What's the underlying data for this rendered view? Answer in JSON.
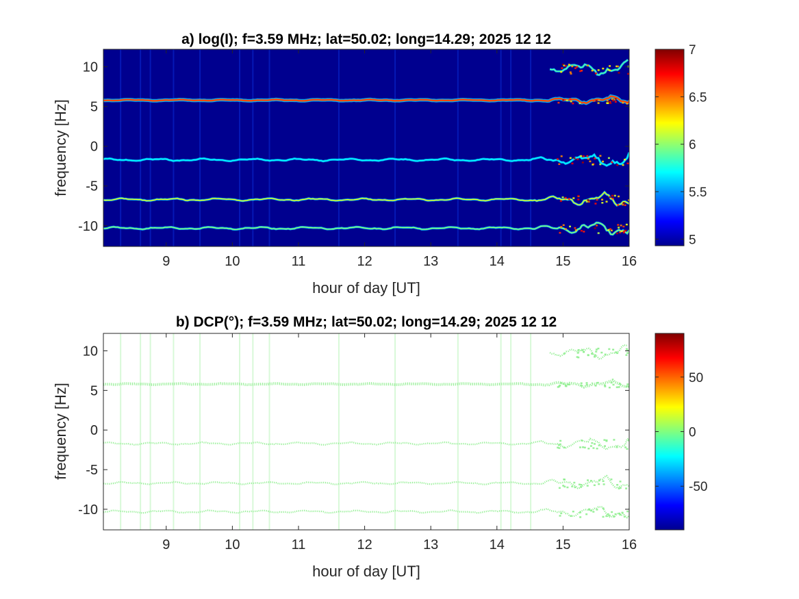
{
  "figure": {
    "background": "#ffffff",
    "plot_background_a": "#00008f",
    "plot_background_b": "#ffffff",
    "trace_color_b": "#90ee90"
  },
  "chart_data": [
    {
      "type": "heatmap",
      "panel": "a",
      "title": "a) log(I); f=3.59 MHz;  lat=50.02; long=14.29; 2025 12 12",
      "xlabel": "hour of day [UT]",
      "ylabel": "frequency [Hz]",
      "xlim": [
        8.05,
        16.0
      ],
      "ylim": [
        -12.6,
        12.2
      ],
      "xticks": [
        9,
        10,
        11,
        12,
        13,
        14,
        15,
        16
      ],
      "xtick_labels": [
        "9",
        "10",
        "11",
        "12",
        "13",
        "14",
        "15",
        "16"
      ],
      "yticks": [
        10,
        5,
        0,
        -5,
        -10
      ],
      "ytick_labels": [
        "10",
        "5",
        "0",
        "-5",
        "-10"
      ],
      "colormap": "jet",
      "clim": [
        4.93,
        7.0
      ],
      "colorbar_ticks": [
        7,
        6.5,
        6,
        5.5,
        5
      ],
      "colorbar_tick_labels": [
        "7",
        "6.5",
        "6",
        "5.5",
        "5"
      ],
      "traces": [
        {
          "x_start": 8.05,
          "x_end": 16.0,
          "y": 5.8,
          "level": 6.6
        },
        {
          "x_start": 8.05,
          "x_end": 16.0,
          "y": -6.7,
          "level": 6.2
        },
        {
          "x_start": 8.05,
          "x_end": 16.0,
          "y": -10.3,
          "level": 6.0
        },
        {
          "x_start": 8.05,
          "x_end": 16.0,
          "y": -1.7,
          "level": 5.7
        },
        {
          "x_start": 14.8,
          "x_end": 16.0,
          "y": 9.8,
          "level": 5.9
        }
      ]
    },
    {
      "type": "heatmap",
      "panel": "b",
      "title": "b) DCP(°); f=3.59 MHz;  lat=50.02; long=14.29; 2025 12 12",
      "xlabel": "hour of day [UT]",
      "ylabel": "frequency [Hz]",
      "xlim": [
        8.05,
        16.0
      ],
      "ylim": [
        -12.6,
        12.2
      ],
      "xticks": [
        9,
        10,
        11,
        12,
        13,
        14,
        15,
        16
      ],
      "xtick_labels": [
        "9",
        "10",
        "11",
        "12",
        "13",
        "14",
        "15",
        "16"
      ],
      "yticks": [
        10,
        5,
        0,
        -5,
        -10
      ],
      "ytick_labels": [
        "10",
        "5",
        "0",
        "-5",
        "-10"
      ],
      "colormap": "jet",
      "clim": [
        -90,
        90
      ],
      "colorbar_ticks": [
        50,
        0,
        -50
      ],
      "colorbar_tick_labels": [
        "50",
        "0",
        "-50"
      ],
      "traces": [
        {
          "x_start": 8.05,
          "x_end": 16.0,
          "y": 5.8,
          "value": 0
        },
        {
          "x_start": 8.05,
          "x_end": 16.0,
          "y": -6.7,
          "value": 0
        },
        {
          "x_start": 8.05,
          "x_end": 16.0,
          "y": -10.3,
          "value": 0
        },
        {
          "x_start": 8.05,
          "x_end": 16.0,
          "y": -1.7,
          "value": 0
        },
        {
          "x_start": 14.8,
          "x_end": 16.0,
          "y": 9.8,
          "value": 0
        }
      ]
    }
  ]
}
